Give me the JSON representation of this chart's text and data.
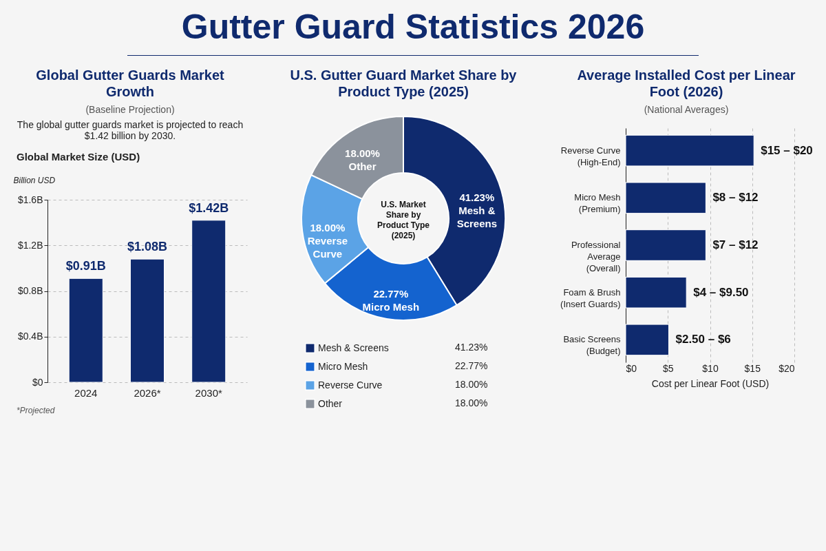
{
  "chart_data": [
    {
      "type": "other",
      "title": "Gutter Guard Statistics 2026"
    },
    {
      "type": "bar",
      "title": "Global Gutter Guards Market Growth",
      "subtitle": "(Baseline Projection)",
      "annotations": [
        "The global gutter guards market is projected to reach $1.42 billion by 2030.",
        "Global Market Size (USD)",
        "*Projected"
      ],
      "ylabel": "Billion USD",
      "categories": [
        "2024",
        "2026*",
        "2030*"
      ],
      "values": [
        0.91,
        1.08,
        1.42
      ],
      "value_labels": [
        "$0.91B",
        "$1.08B",
        "$1.42B"
      ],
      "color": "#0f2a6e",
      "ylim": [
        0,
        1.6
      ],
      "yticks": [
        {
          "value": 0,
          "label": "$0"
        },
        {
          "value": 0.4,
          "label": "$0.4B"
        },
        {
          "value": 0.8,
          "label": "$0.8B"
        },
        {
          "value": 1.2,
          "label": "$1.2B"
        },
        {
          "value": 1.6,
          "label": "$1.6B"
        }
      ],
      "grid": "y"
    },
    {
      "type": "donut",
      "title": "U.S. Gutter Guard Market Share by Product Type (2025)",
      "annotations": [
        "U.S. Market Share by Product Type (2025)"
      ],
      "categories": [
        "Mesh & Screens",
        "Micro Mesh",
        "Reverse Curve",
        "Other"
      ],
      "values": [
        41.23,
        22.77,
        18.0,
        18.0
      ],
      "value_labels": [
        "41.23%",
        "22.77%",
        "18.00%",
        "18.00%"
      ],
      "colors": [
        "#0f2a6e",
        "#1463cf",
        "#5ba3e6",
        "#8b929c"
      ],
      "legend": "bottom"
    },
    {
      "type": "bar",
      "orientation": "horizontal",
      "title": "Average Installed Cost per Linear Foot (2026)",
      "subtitle": "(National Averages)",
      "xlabel": "Cost per Linear Foot (USD)",
      "categories": [
        "Reverse Curve\n(High-End)",
        "Micro Mesh\n(Premium)",
        "Professional\nAverage\n(Overall)",
        "Foam & Brush\n(Insert Guards)",
        "Basic Screens\n(Budget)"
      ],
      "values": [
        15.2,
        9.5,
        9.5,
        7.2,
        5.1
      ],
      "color": "#0f2a6e",
      "xlim": [
        0,
        20
      ],
      "xticks": [
        {
          "value": 0,
          "label": "$0"
        },
        {
          "value": 5,
          "label": "$5"
        },
        {
          "value": 10,
          "label": "$10"
        },
        {
          "value": 15,
          "label": "$15"
        },
        {
          "value": 20,
          "label": "$20"
        }
      ],
      "grid": "x",
      "annotations": [
        {
          "text": "$15 – $20",
          "x": 15.2,
          "y": "Reverse Curve\n(High-End)"
        },
        {
          "text": "$8 – $12",
          "x": 9.5,
          "y": "Micro Mesh\n(Premium)"
        },
        {
          "text": "$7 – $12",
          "x": 9.5,
          "y": "Professional\nAverage\n(Overall)"
        },
        {
          "text": "$4 – $9.50",
          "x": 7.2,
          "y": "Foam & Brush\n(Insert Guards)"
        },
        {
          "text": "$2.50 – $6",
          "x": 5.1,
          "y": "Basic Screens\n(Budget)"
        }
      ]
    }
  ]
}
